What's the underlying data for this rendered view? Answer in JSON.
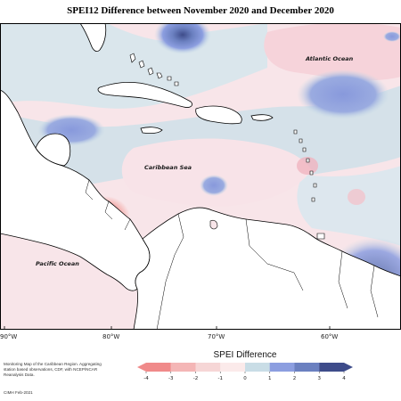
{
  "title": "SPEI12 Difference between November 2020 and December 2020",
  "labels": {
    "atlantic": "Atlantic Ocean",
    "caribbean": "Caribbean Sea",
    "pacific": "Pacific Ocean"
  },
  "lon_ticks": [
    "90°W",
    "80°W",
    "70°W",
    "60°W"
  ],
  "legend": {
    "title": "SPEI Difference",
    "ticks": [
      "-4",
      "-3",
      "-2",
      "-1",
      "0",
      "1",
      "2",
      "3",
      "4"
    ],
    "colors": [
      "#f08a8a",
      "#f4b6b6",
      "#f6d6d6",
      "#fbeaea",
      "#e6eef2",
      "#c9dde6",
      "#8c9ee0",
      "#6b80c0",
      "#3e4c8a"
    ]
  },
  "footnote": "Monitoring Map of the Caribbean Region. Aggregating station based observations, CDF, with NCEP/NCAR Reanalysis Data.",
  "credit": "CIMH Feb-2021",
  "colors": {
    "land": "#ffffff",
    "coast": "#000000",
    "ocean_base": "#f9e6ea"
  }
}
